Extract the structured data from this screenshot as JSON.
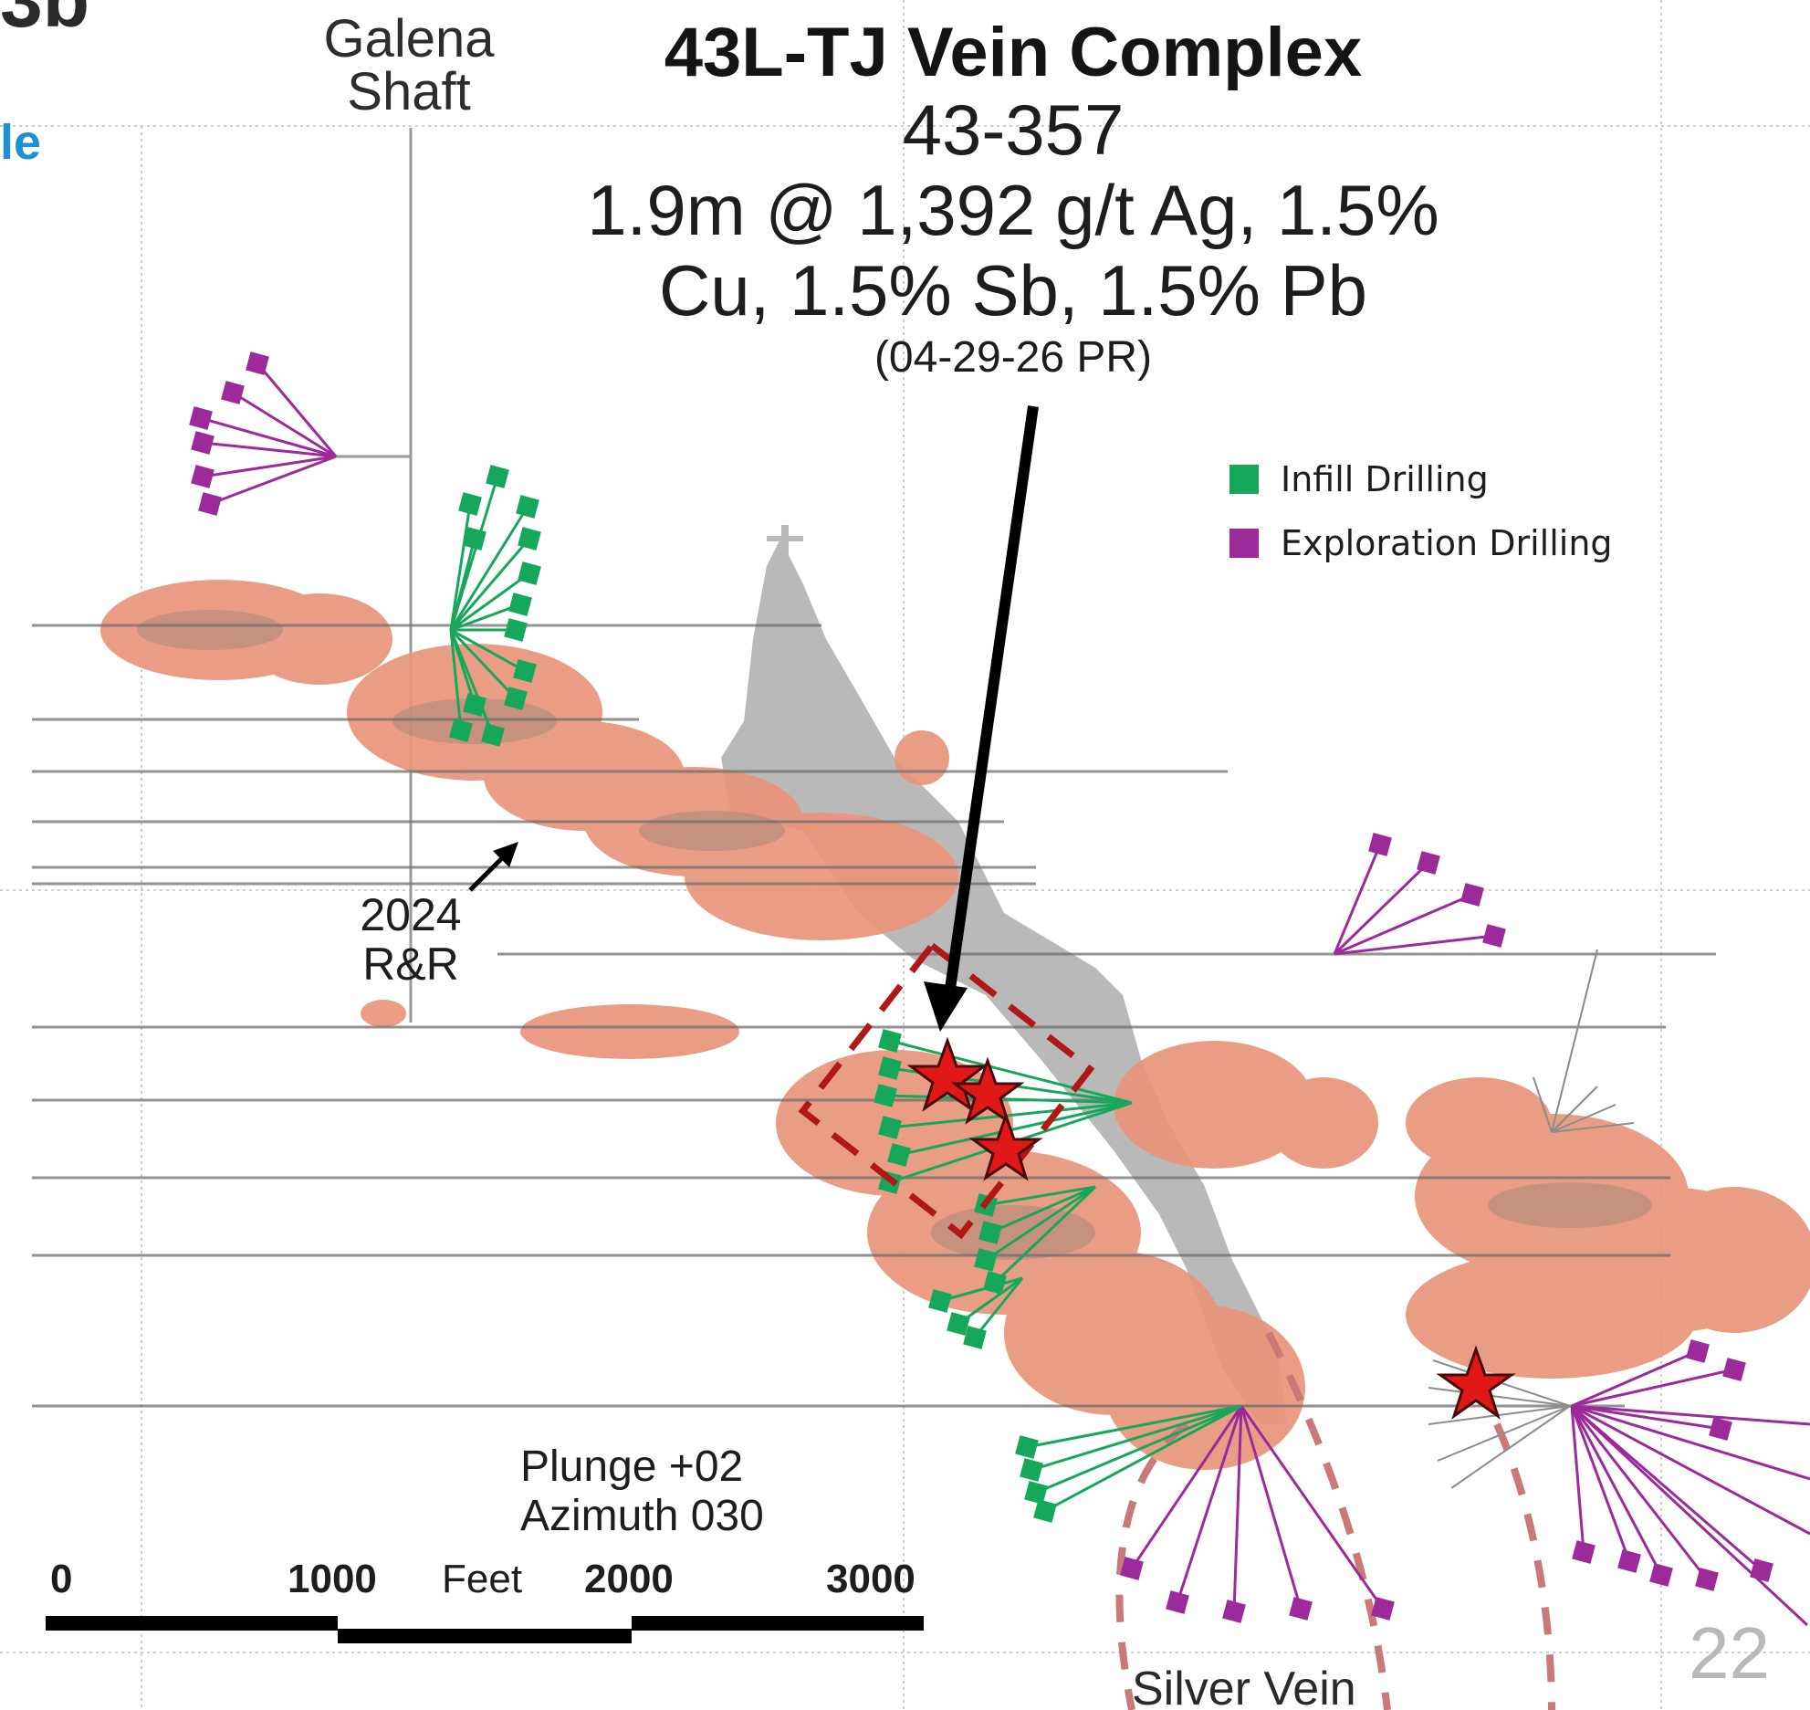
{
  "header": {
    "corner_title": "3b",
    "corner_subtitle": "le"
  },
  "labels": {
    "shaft": "Galena Shaft",
    "title": "43L-TJ Vein Complex",
    "hole_id": "43-357",
    "assay_line1": "1.9m @ 1,392 g/t Ag, 1.5%",
    "assay_line2": "Cu, 1.5% Sb, 1.5% Pb",
    "press_release": "(04-29-26 PR)",
    "rr_year": "2024",
    "rr_text": "R&R",
    "plunge": "Plunge +02",
    "azimuth": "Azimuth 030",
    "vein": "Silver Vein",
    "page_number": "22"
  },
  "legend": [
    {
      "label": "Infill Drilling",
      "color": "#16a85a"
    },
    {
      "label": "Exploration Drilling",
      "color": "#9c2a9b"
    }
  ],
  "scale_bar": {
    "ticks": [
      "0",
      "1000",
      "2000",
      "3000"
    ],
    "unit": "Feet"
  },
  "colors": {
    "ore_body": "#e8957a",
    "ore_dark": "#8a7a78",
    "workings": "#b9b9b9",
    "infill": "#16a85a",
    "exploration": "#9c2a9b",
    "star": "#e01818",
    "vein_dash": "#c97a78",
    "target_box": "#b01818"
  }
}
